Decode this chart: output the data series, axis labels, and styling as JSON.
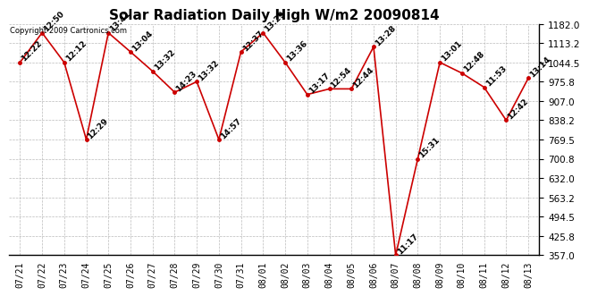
{
  "title": "Solar Radiation Daily High W/m2 20090814",
  "copyright_text": "Copyright 2009 Cartronics.com",
  "dates": [
    "07/21",
    "07/22",
    "07/23",
    "07/24",
    "07/25",
    "07/26",
    "07/27",
    "07/28",
    "07/29",
    "07/30",
    "07/31",
    "08/01",
    "08/02",
    "08/03",
    "08/04",
    "08/05",
    "08/06",
    "08/07",
    "08/08",
    "08/09",
    "08/10",
    "08/11",
    "08/12",
    "08/13"
  ],
  "values": [
    1044.5,
    1150.0,
    1044.5,
    769.5,
    1150.0,
    1082.0,
    1013.0,
    938.0,
    975.8,
    769.5,
    1082.0,
    1150.0,
    1044.5,
    930.0,
    950.0,
    950.0,
    1100.0,
    357.0,
    700.8,
    1044.5,
    1006.0,
    956.0,
    838.2,
    988.0
  ],
  "labels": [
    "12:22",
    "12:50",
    "12:12",
    "12:29",
    "13:41",
    "13:04",
    "13:32",
    "14:23",
    "13:32",
    "14:57",
    "12:37",
    "13:29",
    "13:36",
    "13:17",
    "12:54",
    "12:44",
    "13:28",
    "11:17",
    "15:31",
    "13:01",
    "12:48",
    "11:53",
    "12:42",
    "13:14"
  ],
  "ylim_min": 357.0,
  "ylim_max": 1182.0,
  "yticks": [
    357.0,
    425.8,
    494.5,
    563.2,
    632.0,
    700.8,
    769.5,
    838.2,
    907.0,
    975.8,
    1044.5,
    1113.2,
    1182.0
  ],
  "line_color": "#cc0000",
  "marker_color": "#cc0000",
  "bg_color": "#ffffff",
  "grid_color": "#bbbbbb",
  "title_fontsize": 11,
  "label_fontsize": 6.5,
  "copyright_fontsize": 6
}
